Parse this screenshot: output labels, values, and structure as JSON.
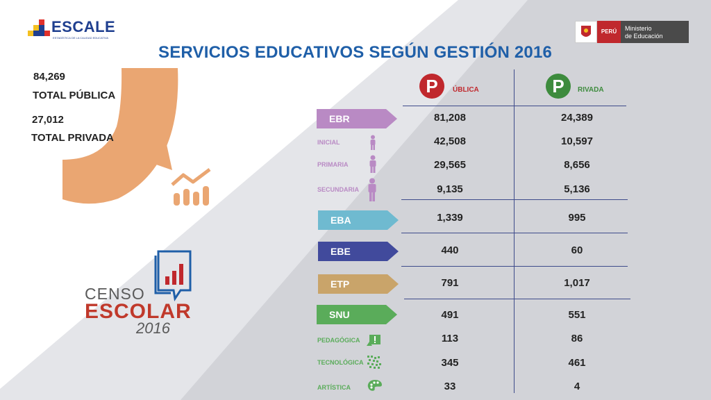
{
  "header": {
    "brand": "ESCALE",
    "brand_tagline": "ESTADÍSTICA DE LA CALIDAD EDUCATIVA",
    "title": "SERVICIOS EDUCATIVOS SEGÚN GESTIÓN 2016",
    "gov_country": "PERÚ",
    "gov_ministry_1": "Ministerio",
    "gov_ministry_2": "de Educación"
  },
  "totals": {
    "publica_value": "84,269",
    "publica_label": "TOTAL PÚBLICA",
    "privada_value": "27,012",
    "privada_label": "TOTAL PRIVADA"
  },
  "columns": {
    "publica_letter": "P",
    "publica_rest": "ÚBLICA",
    "privada_letter": "P",
    "privada_rest": "RIVADA"
  },
  "rows": [
    {
      "label": "EBR",
      "publica": "81,208",
      "privada": "24,389"
    },
    {
      "label": "INICIAL",
      "publica": "42,508",
      "privada": "10,597"
    },
    {
      "label": "PRIMARIA",
      "publica": "29,565",
      "privada": "8,656"
    },
    {
      "label": "SECUNDARIA",
      "publica": "9,135",
      "privada": "5,136"
    },
    {
      "label": "EBA",
      "publica": "1,339",
      "privada": "995"
    },
    {
      "label": "EBE",
      "publica": "440",
      "privada": "60"
    },
    {
      "label": "ETP",
      "publica": "791",
      "privada": "1,017"
    },
    {
      "label": "SNU",
      "publica": "491",
      "privada": "551"
    },
    {
      "label": "PEDAGÓGICA",
      "publica": "113",
      "privada": "86"
    },
    {
      "label": "TECNOLÓGICA",
      "publica": "345",
      "privada": "461"
    },
    {
      "label": "ARTÍSTICA",
      "publica": "33",
      "privada": "4"
    }
  ],
  "censo": {
    "line1": "CENSO",
    "line2": "ESCOLAR",
    "line3": "2016"
  },
  "colors": {
    "title": "#1f5fa8",
    "ebr": "#b98ac4",
    "eba": "#6fbad0",
    "ebe": "#414a9c",
    "etp": "#c9a46a",
    "snu": "#5aac5a",
    "publica": "#c0282d",
    "privada": "#3d8b3d",
    "arc": "#eaa672"
  }
}
